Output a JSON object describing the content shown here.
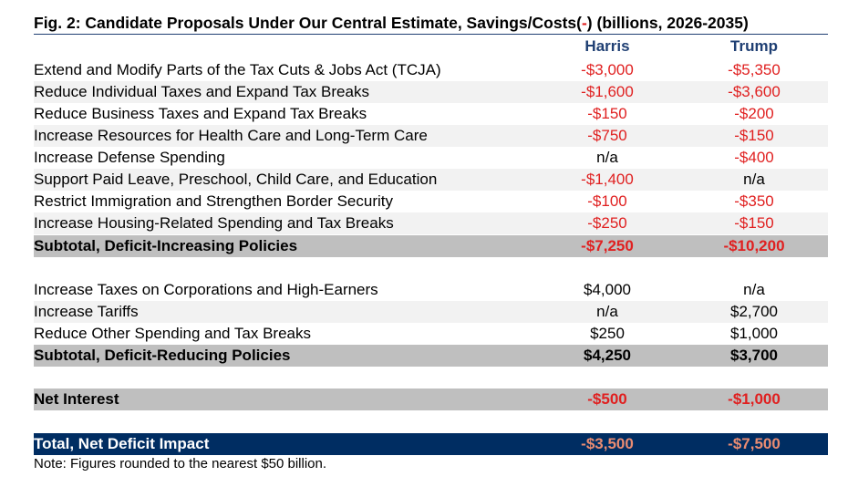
{
  "title_part1": "Fig. 2: Candidate Proposals Under Our Central Estimate, Savings/Costs(",
  "title_neg": "-",
  "title_part2": ") (billions, 2026-2035)",
  "columns": {
    "harris": "Harris",
    "trump": "Trump"
  },
  "rows": [
    {
      "label": "Extend and Modify Parts of the Tax Cuts & Jobs Act (TCJA)",
      "harris": "-$3,000",
      "trump": "-$5,350"
    },
    {
      "label": "Reduce Individual Taxes and Expand Tax Breaks",
      "harris": "-$1,600",
      "trump": "-$3,600"
    },
    {
      "label": "Reduce Business Taxes and Expand Tax Breaks",
      "harris": "-$150",
      "trump": "-$200"
    },
    {
      "label": "Increase Resources for Health Care and Long-Term Care",
      "harris": "-$750",
      "trump": "-$150"
    },
    {
      "label": "Increase Defense Spending",
      "harris": "n/a",
      "trump": "-$400"
    },
    {
      "label": "Support Paid Leave, Preschool, Child Care, and Education",
      "harris": "-$1,400",
      "trump": "n/a"
    },
    {
      "label": "Restrict Immigration and Strengthen Border Security",
      "harris": "-$100",
      "trump": "-$350"
    },
    {
      "label": "Increase Housing-Related Spending and Tax Breaks",
      "harris": "-$250",
      "trump": "-$150"
    },
    {
      "label": "Subtotal, Deficit-Increasing Policies",
      "harris": "-$7,250",
      "trump": "-$10,200"
    },
    {
      "label": "Increase Taxes on Corporations and High-Earners",
      "harris": "$4,000",
      "trump": "n/a"
    },
    {
      "label": "Increase Tariffs",
      "harris": "n/a",
      "trump": "$2,700"
    },
    {
      "label": "Reduce Other Spending and Tax Breaks",
      "harris": "$250",
      "trump": "$1,000"
    },
    {
      "label": "Subtotal, Deficit-Reducing Policies",
      "harris": "$4,250",
      "trump": "$3,700"
    },
    {
      "label": "Net Interest",
      "harris": "-$500",
      "trump": "-$1,000"
    },
    {
      "label": "Total, Net Deficit Impact",
      "harris": "-$3,500",
      "trump": "-$7,500"
    }
  ],
  "note": "Note: Figures rounded to the nearest $50 billion.",
  "colors": {
    "negative": "#e02020",
    "header": "#1f3f73",
    "total_bg": "#002d62",
    "subtotal_bg": "#bfbfbf",
    "shade": "#f2f2f2"
  }
}
